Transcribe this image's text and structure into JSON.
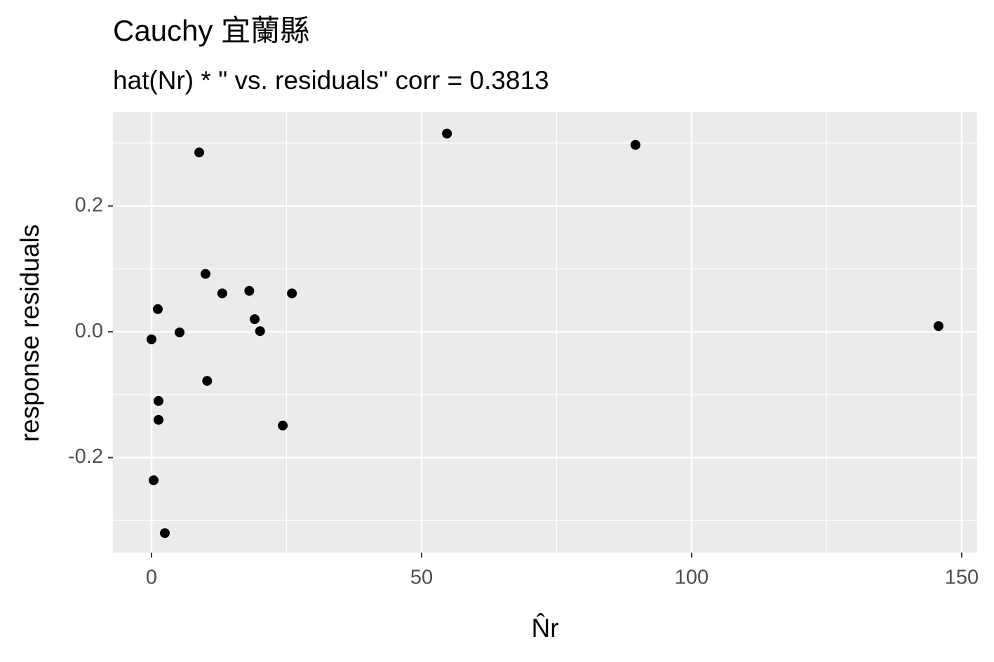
{
  "chart_data": {
    "type": "scatter",
    "title": "Cauchy 宜蘭縣",
    "subtitle": "hat(Nr) * \"  vs. residuals\" corr = 0.3813",
    "x_label": "N̂r",
    "y_label": "response residuals",
    "color": "#000000",
    "x": [
      8.83,
      54.7,
      89.6,
      10.0,
      13.1,
      18.1,
      26.0,
      1.17,
      19.1,
      20.1,
      0.0,
      5.2,
      145.7,
      10.3,
      1.3,
      1.3,
      24.3,
      0.39,
      2.47
    ],
    "values": [
      0.285,
      0.315,
      0.297,
      0.092,
      0.061,
      0.065,
      0.061,
      0.036,
      0.02,
      0.001,
      -0.012,
      -0.001,
      0.009,
      -0.078,
      -0.11,
      -0.14,
      -0.149,
      -0.236,
      -0.32
    ],
    "xlim": [
      -7.14,
      152.86
    ],
    "ylim": [
      -0.351,
      0.349
    ],
    "xticks": [
      0,
      50,
      100,
      150
    ],
    "yticks": [
      -0.2,
      {
        "value": 0,
        "label": "0.0"
      },
      0.2
    ],
    "x_minor_grid": [
      25,
      75,
      125
    ],
    "y_minor_grid": [
      -0.3,
      -0.1,
      0.1,
      0.3
    ],
    "grid": true
  }
}
